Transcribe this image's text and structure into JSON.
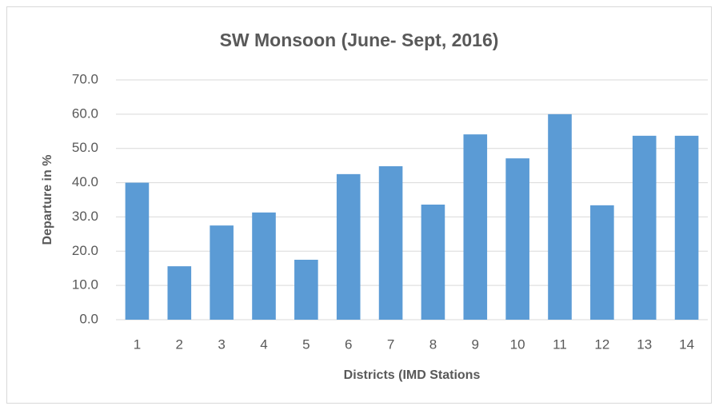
{
  "chart_data": {
    "type": "bar",
    "title": "SW Monsoon (June- Sept, 2016)",
    "x_label": "Districts (IMD Stations",
    "y_label": "Departure in %",
    "categories": [
      "1",
      "2",
      "3",
      "4",
      "5",
      "6",
      "7",
      "8",
      "9",
      "10",
      "11",
      "12",
      "13",
      "14"
    ],
    "values": [
      40.0,
      15.6,
      27.5,
      31.3,
      17.5,
      42.5,
      44.8,
      33.6,
      54.1,
      47.1,
      60.0,
      33.4,
      53.7,
      53.7
    ],
    "color": "#5b9bd5",
    "ylim": [
      0,
      70
    ],
    "yticks": [
      {
        "value": 0,
        "label": "0.0"
      },
      {
        "value": 10,
        "label": "10.0"
      },
      {
        "value": 20,
        "label": "20.0"
      },
      {
        "value": 30,
        "label": "30.0"
      },
      {
        "value": 40,
        "label": "40.0"
      },
      {
        "value": 50,
        "label": "50.0"
      },
      {
        "value": 60,
        "label": "60.0"
      },
      {
        "value": 70,
        "label": "70.0"
      }
    ],
    "grid": true
  }
}
